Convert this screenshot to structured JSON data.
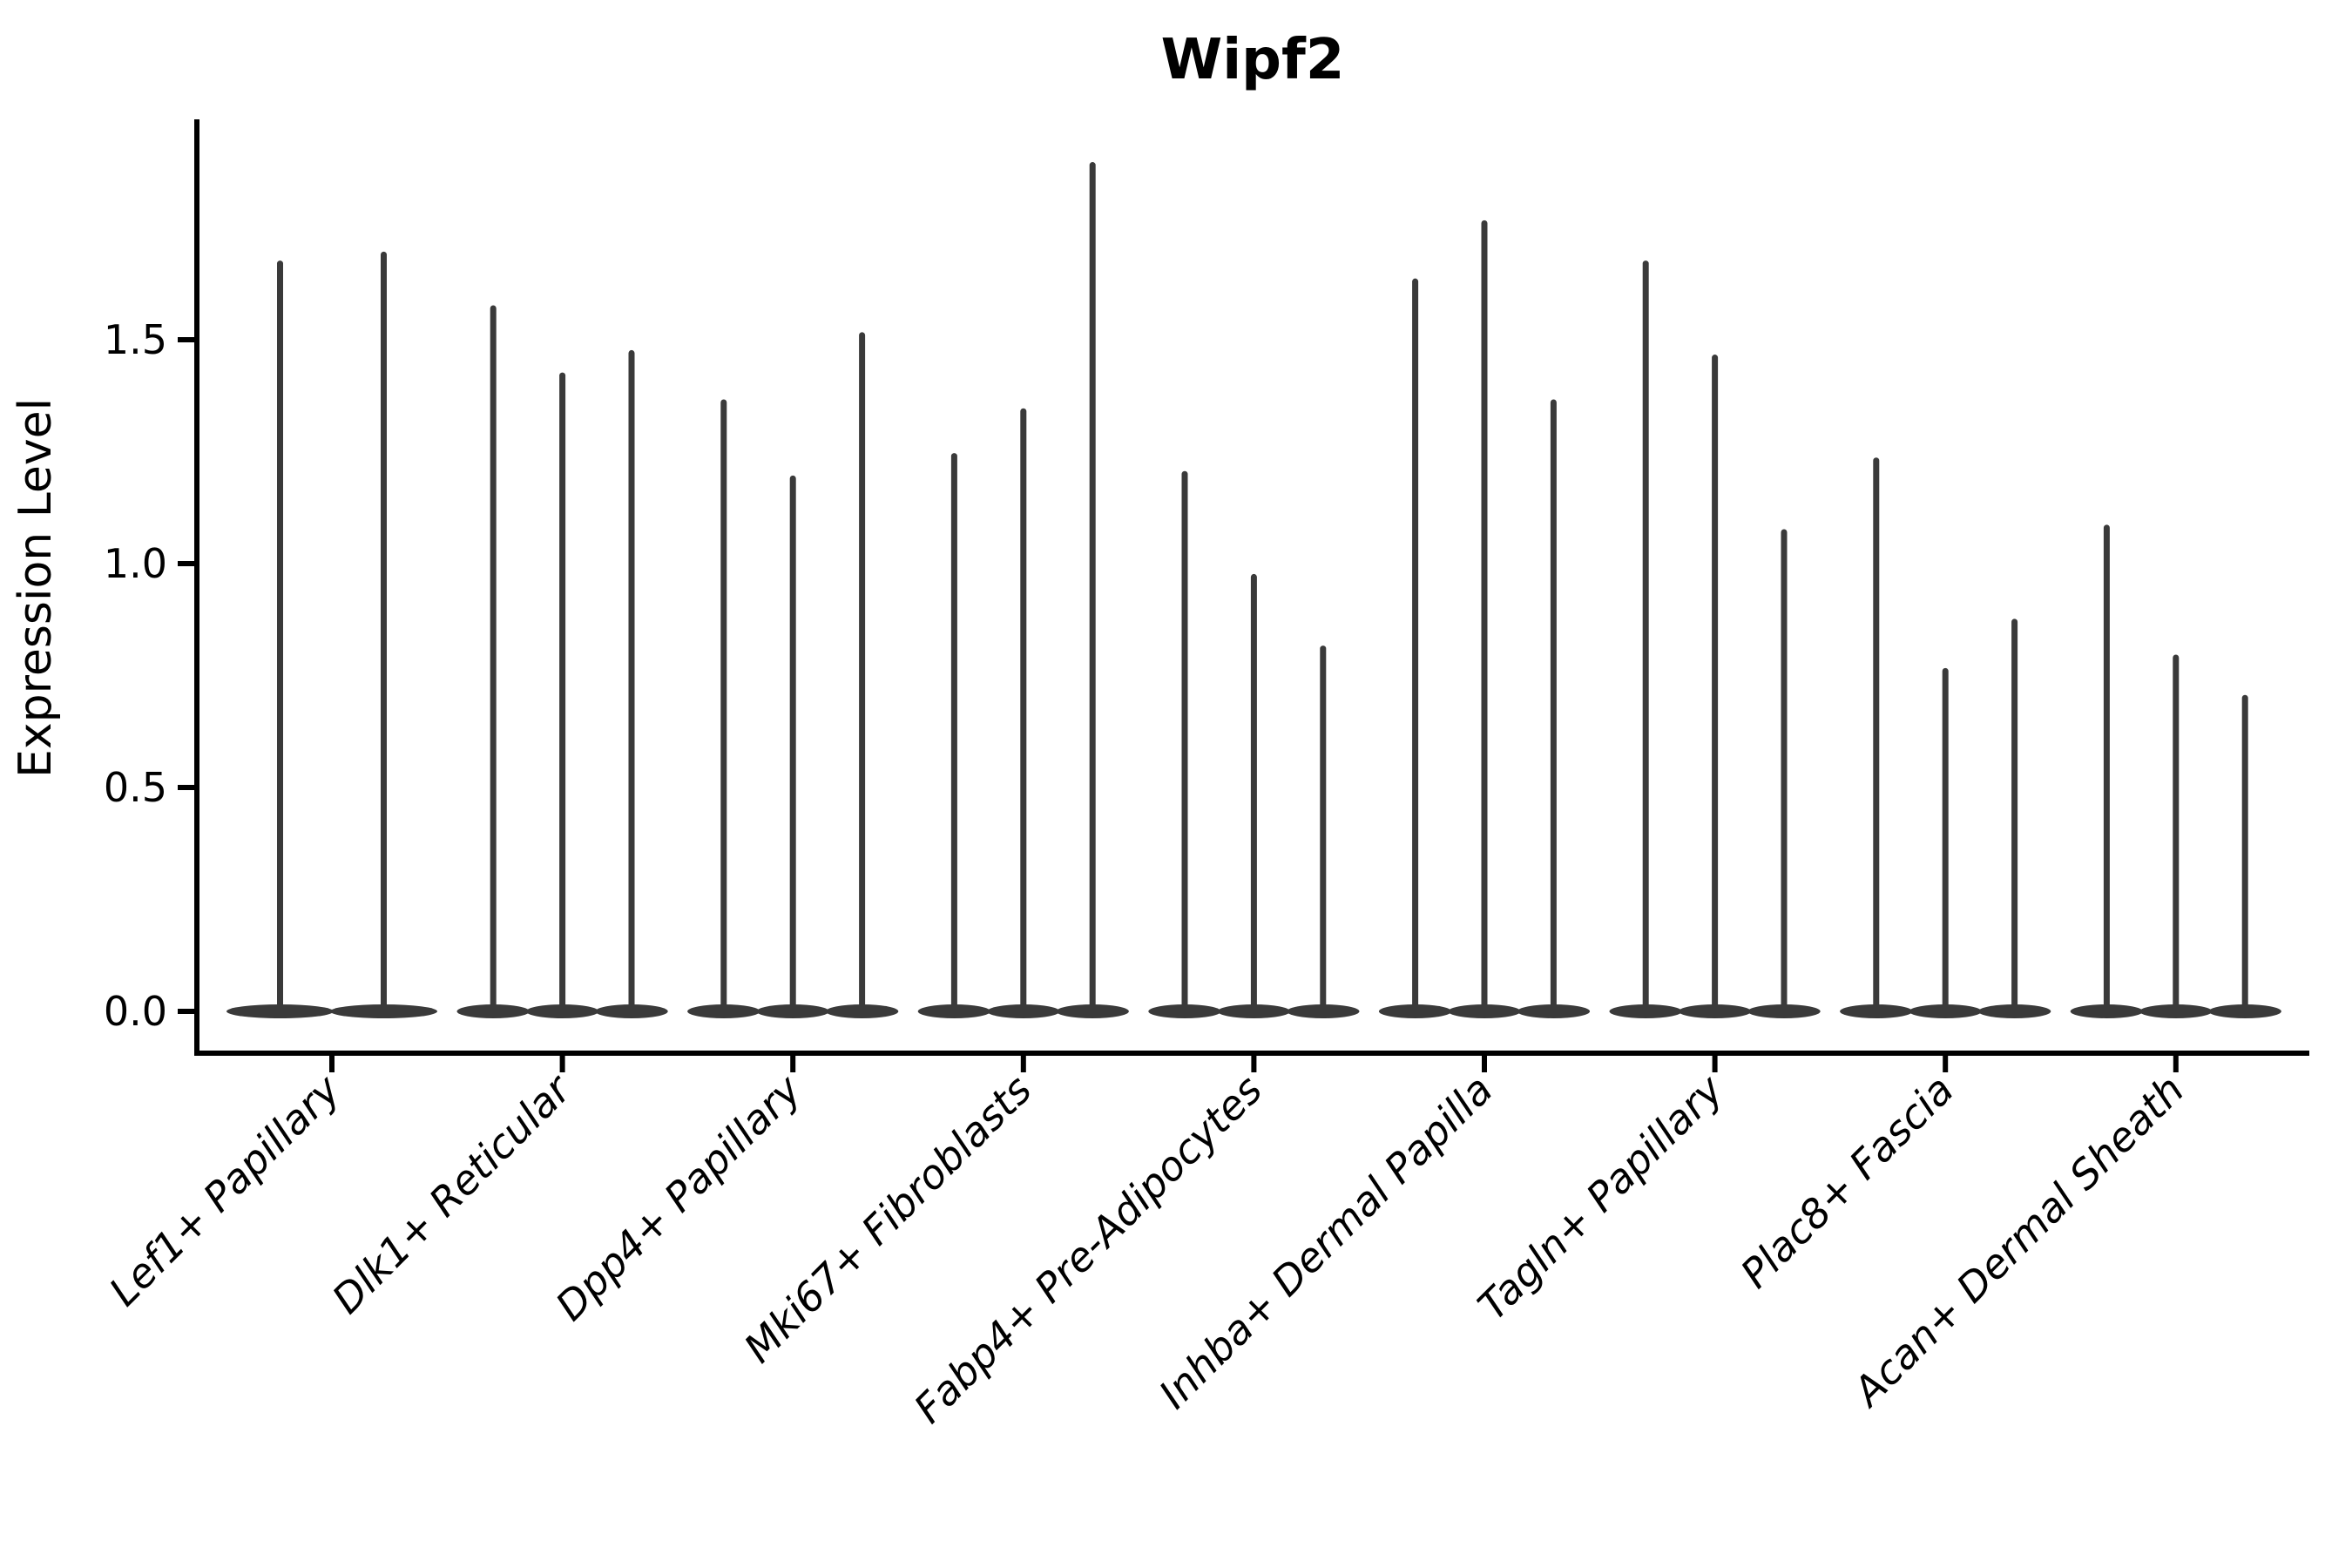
{
  "figure": {
    "background": "#ffffff",
    "text_color": "#000000",
    "axis_color": "#000000",
    "violin_color": "#3a3a3a"
  },
  "chart_data": {
    "type": "violin",
    "title": "Wipf2",
    "xlabel": "",
    "ylabel": "Expression Level",
    "grid": false,
    "legend_position": "none",
    "ylim": [
      -0.09,
      1.99
    ],
    "ytick_values": [
      0.0,
      0.5,
      1.0,
      1.5
    ],
    "ytick_labels": [
      "0.0",
      "0.5",
      "1.0",
      "1.5"
    ],
    "x_label_angle_deg": 45,
    "x_label_style": "italic",
    "baseline_value": 0.0,
    "description": "Violin plot of Wipf2 expression; each category shows narrow violins (grouped/dodged) collapsed at 0 with thin spikes reaching the maximum expression value.",
    "categories": [
      "Lef1+ Papillary",
      "Dlk1+ Reticular",
      "Dpp4+ Papillary",
      "Mki67+ Fibroblasts",
      "Fabp4+ Pre-Adipocytes",
      "Inhba+ Dermal Papilla",
      "Tagln+ Papillary",
      "Plac8+ Fascia",
      "Acan+ Dermal Sheath"
    ],
    "groups": [
      {
        "category": "Lef1+ Papillary",
        "violin_max_values": [
          1.67,
          1.69
        ]
      },
      {
        "category": "Dlk1+ Reticular",
        "violin_max_values": [
          1.57,
          1.42,
          1.47
        ]
      },
      {
        "category": "Dpp4+ Papillary",
        "violin_max_values": [
          1.36,
          1.19,
          1.51
        ]
      },
      {
        "category": "Mki67+ Fibroblasts",
        "violin_max_values": [
          1.24,
          1.34,
          1.89
        ]
      },
      {
        "category": "Fabp4+ Pre-Adipocytes",
        "violin_max_values": [
          1.2,
          0.97,
          0.81
        ]
      },
      {
        "category": "Inhba+ Dermal Papilla",
        "violin_max_values": [
          1.63,
          1.76,
          1.36
        ]
      },
      {
        "category": "Tagln+ Papillary",
        "violin_max_values": [
          1.67,
          1.46,
          1.07
        ]
      },
      {
        "category": "Plac8+ Fascia",
        "violin_max_values": [
          1.23,
          0.76,
          0.87
        ]
      },
      {
        "category": "Acan+ Dermal Sheath",
        "violin_max_values": [
          1.08,
          0.79,
          0.7
        ]
      }
    ]
  }
}
